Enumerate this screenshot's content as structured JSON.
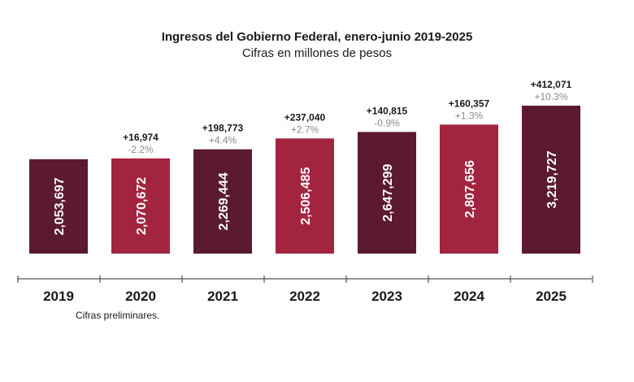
{
  "chart_data": {
    "type": "bar",
    "title": "Ingresos del Gobierno Federal, enero-junio 2019-2025",
    "subtitle": "Cifras en millones de pesos",
    "categories": [
      "2019",
      "2020",
      "2021",
      "2022",
      "2023",
      "2024",
      "2025"
    ],
    "values": [
      2053697,
      2070672,
      2269444,
      2506485,
      2647299,
      2807656,
      3219727
    ],
    "value_labels": [
      "2,053,697",
      "2,070,672",
      "2,269,444",
      "2,506,485",
      "2,647,299",
      "2,807,656",
      "3,219,727"
    ],
    "change_abs": [
      "",
      "+16,974",
      "+198,773",
      "+237,040",
      "+140,815",
      "+160,357",
      "+412,071"
    ],
    "change_pct": [
      "",
      "-2.2%",
      "+4.4%",
      "+2.7%",
      "-0.9%",
      "+1.3%",
      "+10.3%"
    ],
    "bar_colors": [
      "#5b1a2e",
      "#a3243f",
      "#5b1a2e",
      "#a3243f",
      "#5b1a2e",
      "#a3243f",
      "#5b1a2e"
    ],
    "grid": false,
    "legend": "none"
  },
  "footnote": "Cifras preliminares."
}
